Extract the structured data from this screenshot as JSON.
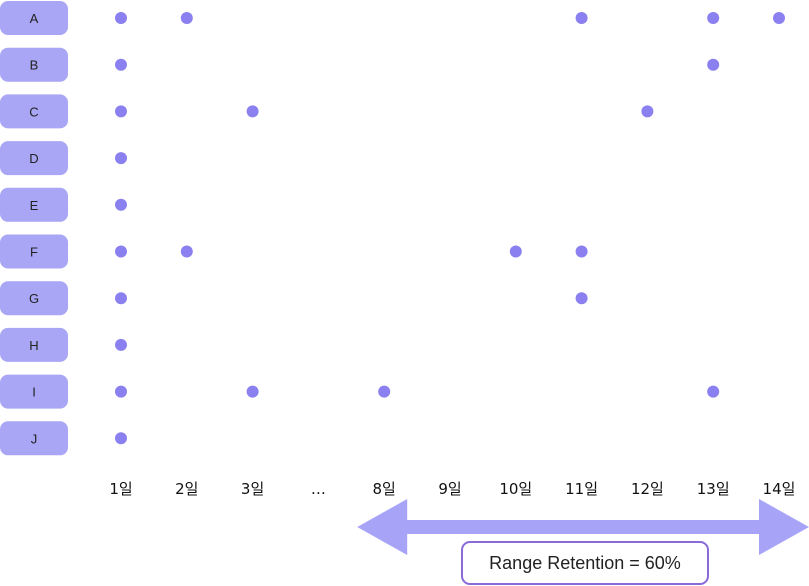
{
  "colors": {
    "row_pill": "#a9a6f6",
    "dot": "#8b80ef",
    "arrow": "#a7a4f8",
    "annotation_border": "#8a6ad8"
  },
  "chart_data": {
    "type": "scatter",
    "rows": [
      "A",
      "B",
      "C",
      "D",
      "E",
      "F",
      "G",
      "H",
      "I",
      "J"
    ],
    "columns": [
      "1일",
      "2일",
      "3일",
      "…",
      "8일",
      "9일",
      "10일",
      "11일",
      "12일",
      "13일",
      "14일"
    ],
    "points": [
      {
        "row": "A",
        "column": "1일"
      },
      {
        "row": "A",
        "column": "2일"
      },
      {
        "row": "A",
        "column": "11일"
      },
      {
        "row": "A",
        "column": "13일"
      },
      {
        "row": "A",
        "column": "14일"
      },
      {
        "row": "B",
        "column": "1일"
      },
      {
        "row": "B",
        "column": "13일"
      },
      {
        "row": "C",
        "column": "1일"
      },
      {
        "row": "C",
        "column": "3일"
      },
      {
        "row": "C",
        "column": "12일"
      },
      {
        "row": "D",
        "column": "1일"
      },
      {
        "row": "E",
        "column": "1일"
      },
      {
        "row": "F",
        "column": "1일"
      },
      {
        "row": "F",
        "column": "2일"
      },
      {
        "row": "F",
        "column": "10일"
      },
      {
        "row": "F",
        "column": "11일"
      },
      {
        "row": "G",
        "column": "1일"
      },
      {
        "row": "G",
        "column": "11일"
      },
      {
        "row": "H",
        "column": "1일"
      },
      {
        "row": "I",
        "column": "1일"
      },
      {
        "row": "I",
        "column": "3일"
      },
      {
        "row": "I",
        "column": "8일"
      },
      {
        "row": "I",
        "column": "13일"
      },
      {
        "row": "J",
        "column": "1일"
      }
    ],
    "range": {
      "from": "8일",
      "to": "14일"
    },
    "annotation": "Range Retention = 60%"
  }
}
